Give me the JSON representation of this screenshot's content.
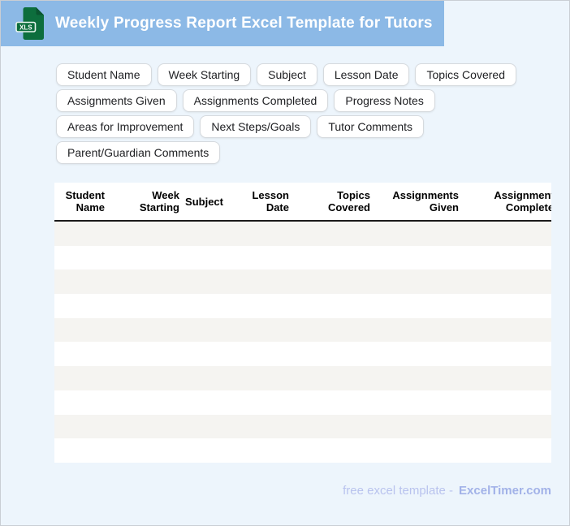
{
  "header": {
    "title": "Weekly Progress Report Excel Template for Tutors",
    "icon_label": "XLS"
  },
  "field_tags": [
    "Student Name",
    "Week Starting",
    "Subject",
    "Lesson Date",
    "Topics Covered",
    "Assignments Given",
    "Assignments Completed",
    "Progress Notes",
    "Areas for Improvement",
    "Next Steps/Goals",
    "Tutor Comments",
    "Parent/Guardian Comments"
  ],
  "table": {
    "columns": [
      {
        "label": "Student Name",
        "lines": [
          "Student",
          "Name"
        ]
      },
      {
        "label": "Week Starting",
        "lines": [
          "Week",
          "Starting"
        ]
      },
      {
        "label": "Subject",
        "lines": [
          "Subject"
        ]
      },
      {
        "label": "Lesson Date",
        "lines": [
          "Lesson",
          "Date"
        ]
      },
      {
        "label": "Topics Covered",
        "lines": [
          "Topics",
          "Covered"
        ]
      },
      {
        "label": "Assignments Given",
        "lines": [
          "Assignments",
          "Given"
        ]
      },
      {
        "label": "Assignments Completed",
        "lines": [
          "Assignments",
          "Completed"
        ],
        "clipped": true
      }
    ],
    "empty_row_count": 10
  },
  "footer": {
    "text": "free excel template -",
    "brand": "ExcelTimer.com"
  },
  "colors": {
    "banner": "#8cb9e6",
    "page-bg": "#edf5fc",
    "icon-green": "#0d6e3d",
    "icon-fold": "#0a5530",
    "icon-badge-border": "#e9f5ee",
    "stripe": "#f5f4f1",
    "footer-text": "#b9c3ee",
    "footer-brand": "#a2b2e8",
    "pill-border": "#d6dade",
    "header-divider": "#1a1a1a"
  }
}
